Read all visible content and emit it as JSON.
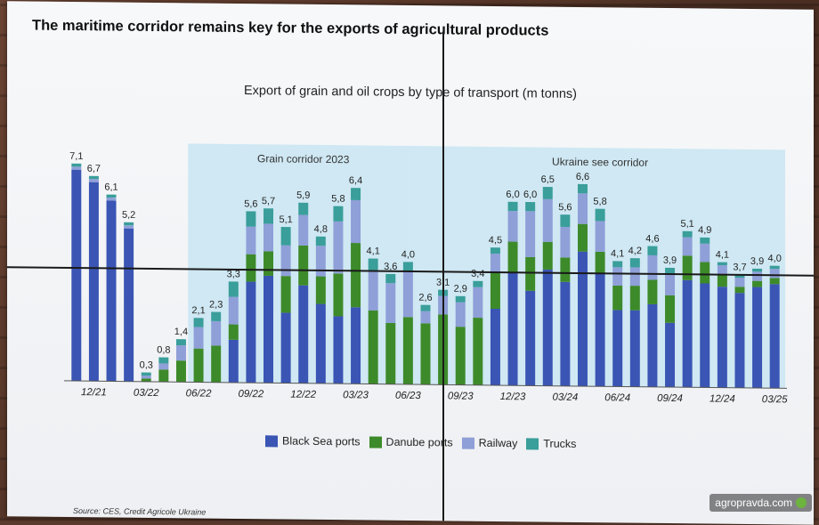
{
  "header": {
    "title": "The maritime corridor remains key for the exports of agricultural products"
  },
  "footer": {
    "source": "Source: CES, Credit Agricole Ukraine",
    "watermark": "agropravda.com"
  },
  "legend": [
    {
      "name": "Black Sea ports",
      "color": "#3a55b4"
    },
    {
      "name": "Danube ports",
      "color": "#3d8a2a"
    },
    {
      "name": "Railway",
      "color": "#8f9fd8"
    },
    {
      "name": "Trucks",
      "color": "#3a9e9a"
    }
  ],
  "chart_data": {
    "type": "bar",
    "stacked": true,
    "title": "Export of grain and oil crops by type of transport (m tonns)",
    "xlabel": "",
    "ylabel": "",
    "ylim": [
      0,
      7.5
    ],
    "grid": false,
    "legend_placement": "bottom",
    "tick_labels": [
      {
        "label": "12/21",
        "index": 1
      },
      {
        "label": "03/22",
        "index": 4
      },
      {
        "label": "06/22",
        "index": 7
      },
      {
        "label": "09/22",
        "index": 10
      },
      {
        "label": "12/22",
        "index": 13
      },
      {
        "label": "03/23",
        "index": 16
      },
      {
        "label": "06/23",
        "index": 19
      },
      {
        "label": "09/23",
        "index": 22
      },
      {
        "label": "12/23",
        "index": 25
      },
      {
        "label": "03/24",
        "index": 28
      },
      {
        "label": "06/24",
        "index": 31
      },
      {
        "label": "09/24",
        "index": 34
      },
      {
        "label": "12/24",
        "index": 37
      },
      {
        "label": "03/25",
        "index": 40
      }
    ],
    "annotations": [
      {
        "label": "Grain corridor 2023",
        "from": 7,
        "to": 19
      },
      {
        "label": "Ukraine see corridor",
        "from": 20,
        "to": 40
      }
    ],
    "totals": [
      "7,1",
      "6,7",
      "6,1",
      "5,2",
      "0,3",
      "0,8",
      "1,4",
      "2,1",
      "2,3",
      "3,3",
      "5,6",
      "5,7",
      "5,1",
      "5,9",
      "4,8",
      "5,8",
      "6,4",
      "4,1",
      "3,6",
      "4,0",
      "2,6",
      "3,1",
      "2,9",
      "3,4",
      "4,5",
      "6,0",
      "6,0",
      "6,5",
      "5,6",
      "6,6",
      "5,8",
      "4,1",
      "4,2",
      "4,6",
      "3,9",
      "5,1",
      "4,9",
      "4,1",
      "3,7",
      "3,9",
      "4,0"
    ],
    "series": [
      {
        "name": "Black Sea ports",
        "values": [
          6.9,
          6.5,
          5.9,
          5.0,
          0,
          0,
          0,
          0,
          0,
          1.4,
          3.3,
          3.5,
          2.3,
          3.2,
          2.6,
          2.2,
          2.5,
          0,
          0,
          0,
          0,
          0,
          0,
          0,
          2.5,
          3.7,
          3.1,
          3.8,
          3.4,
          4.4,
          3.7,
          2.5,
          2.5,
          2.7,
          2.1,
          3.5,
          3.4,
          3.3,
          3.1,
          3.3,
          3.4
        ]
      },
      {
        "name": "Danube ports",
        "values": [
          0,
          0,
          0,
          0,
          0.1,
          0.4,
          0.7,
          1.1,
          1.2,
          0.5,
          0.9,
          0.8,
          1.2,
          1.3,
          0.9,
          1.4,
          2.1,
          2.4,
          2.0,
          2.2,
          2.0,
          2.3,
          1.9,
          2.2,
          1.2,
          1.0,
          1.1,
          0.9,
          0.8,
          0.9,
          0.7,
          0.8,
          0.8,
          0.8,
          0.9,
          0.8,
          0.7,
          0.4,
          0.2,
          0.2,
          0.2
        ]
      },
      {
        "name": "Railway",
        "values": [
          0.1,
          0.1,
          0.1,
          0.1,
          0.1,
          0.2,
          0.5,
          0.7,
          0.8,
          0.9,
          0.9,
          0.9,
          1.0,
          1.0,
          1.0,
          1.7,
          1.4,
          1.3,
          1.3,
          1.5,
          0.4,
          0.6,
          0.8,
          1.0,
          0.6,
          1.0,
          1.5,
          1.4,
          1.0,
          1.0,
          1.0,
          0.6,
          0.6,
          0.8,
          0.7,
          0.6,
          0.6,
          0.3,
          0.3,
          0.3,
          0.3
        ]
      },
      {
        "name": "Trucks",
        "values": [
          0.1,
          0.1,
          0.1,
          0.1,
          0.1,
          0.2,
          0.2,
          0.3,
          0.3,
          0.5,
          0.5,
          0.5,
          0.6,
          0.4,
          0.3,
          0.5,
          0.4,
          0.4,
          0.3,
          0.3,
          0.2,
          0.2,
          0.2,
          0.2,
          0.2,
          0.3,
          0.3,
          0.4,
          0.4,
          0.3,
          0.4,
          0.2,
          0.3,
          0.3,
          0.2,
          0.2,
          0.2,
          0.1,
          0.1,
          0.1,
          0.1
        ]
      }
    ]
  }
}
